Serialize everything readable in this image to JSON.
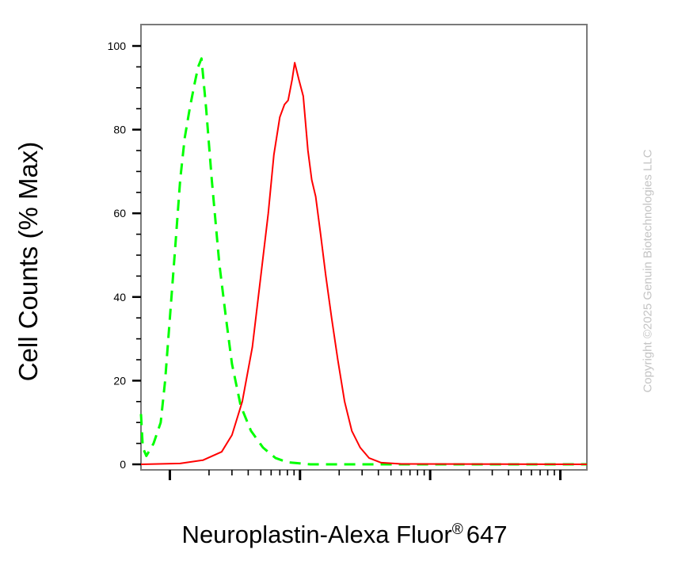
{
  "chart_data": {
    "type": "line",
    "xlabel_main": "Neuroplastin-Alexa Fluor",
    "xlabel_sup": "®",
    "xlabel_tail": "647",
    "ylabel": "Cell Counts (% Max)",
    "ylim": [
      0,
      100
    ],
    "yticks": [
      "0",
      "20",
      "40",
      "60",
      "80",
      "100"
    ],
    "xscale": "log",
    "xlim": [
      0.6,
      1600
    ],
    "grid": false,
    "series": [
      {
        "color": "#00ff00",
        "style": "dashed",
        "points": [
          [
            0.6,
            12
          ],
          [
            0.62,
            4
          ],
          [
            0.66,
            2
          ],
          [
            0.75,
            5
          ],
          [
            0.85,
            10
          ],
          [
            0.92,
            20
          ],
          [
            1.0,
            35
          ],
          [
            1.1,
            52
          ],
          [
            1.2,
            68
          ],
          [
            1.3,
            78
          ],
          [
            1.42,
            85
          ],
          [
            1.55,
            91
          ],
          [
            1.65,
            95
          ],
          [
            1.75,
            97
          ],
          [
            1.9,
            85
          ],
          [
            2.1,
            68
          ],
          [
            2.4,
            48
          ],
          [
            2.7,
            35
          ],
          [
            3.0,
            24
          ],
          [
            3.5,
            14
          ],
          [
            4.2,
            8
          ],
          [
            5.2,
            4
          ],
          [
            6.5,
            1.5
          ],
          [
            8,
            0.5
          ],
          [
            12,
            0
          ],
          [
            1600,
            0
          ]
        ]
      },
      {
        "color": "#ff0000",
        "style": "solid",
        "points": [
          [
            0.6,
            0
          ],
          [
            1.2,
            0.2
          ],
          [
            1.8,
            1
          ],
          [
            2.5,
            3
          ],
          [
            3,
            7
          ],
          [
            3.6,
            15
          ],
          [
            4.3,
            28
          ],
          [
            5.0,
            45
          ],
          [
            5.7,
            60
          ],
          [
            6.3,
            74
          ],
          [
            7.0,
            83
          ],
          [
            7.6,
            86
          ],
          [
            8.1,
            87
          ],
          [
            8.7,
            92
          ],
          [
            9.1,
            96
          ],
          [
            9.8,
            92
          ],
          [
            10.6,
            88
          ],
          [
            11.5,
            75
          ],
          [
            12.3,
            68
          ],
          [
            13.2,
            64
          ],
          [
            14.4,
            55
          ],
          [
            15.8,
            45
          ],
          [
            17.5,
            35
          ],
          [
            19.5,
            25
          ],
          [
            22,
            15
          ],
          [
            25,
            8
          ],
          [
            29,
            4
          ],
          [
            34,
            1.5
          ],
          [
            42,
            0.4
          ],
          [
            60,
            0.1
          ],
          [
            1600,
            0
          ]
        ]
      }
    ]
  },
  "watermark": "Copyright ©2025 Genuin Biotechnologies LLC"
}
